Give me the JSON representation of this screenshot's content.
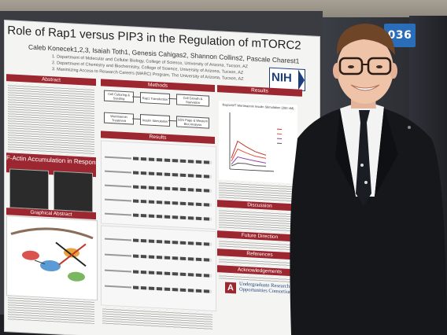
{
  "booth_number": "036",
  "poster": {
    "title": "Role of Rap1 versus PIP3 in the Regulation of mTORC2",
    "authors": "Caleb Konecek1,2,3, Isaiah Toth1, Genesis Cahigas2, Shannon Collins2, Pascale Charest1",
    "affiliations": [
      "1.  Department of Molecular and Cellular Biology, College of Science, University of Arizona, Tucson, AZ",
      "2.  Department of Chemistry and Biochemistry, College of Science, University of Arizona, Tucson, AZ",
      "3.  Maximizing Access to Research Careers (MARC) Program, The University of Arizona, Tucson, AZ"
    ],
    "nih_logo": "NIH",
    "sections": {
      "abstract": "Abstract",
      "methods": "Methods",
      "results_mid": "Results",
      "results_right": "Results",
      "f_actin": "F-Actin Accumulation in Response to External Chemical Stimuli",
      "graphical_abstract": "Graphical Abstract",
      "discussion": "Discussion",
      "future_direction": "Future Direction",
      "references": "References",
      "acknowledgements": "Acknowledgements"
    },
    "methods_steps": [
      "Cell Culturing & Seeding",
      "Rap1 Transfection",
      "Cell Growth & Starvation",
      "Wortmannin Treatment",
      "Insulin Stimulation",
      "SDS Page & Western Blot Analysis"
    ],
    "chart_title": "Rap1vWT Wortmannin Insulin Stimulation (200 nM)",
    "uarizona_text": [
      "Undergraduate Research",
      "Opportunities Consortium"
    ]
  }
}
